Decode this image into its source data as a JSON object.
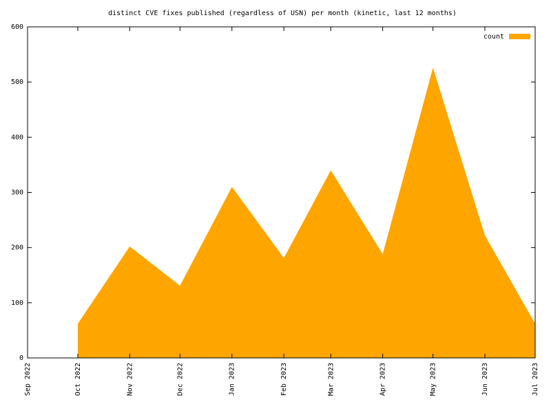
{
  "chart_data": {
    "type": "area",
    "title": "distinct CVE fixes published (regardless of USN) per month (kinetic, last 12 months)",
    "x": [
      "2022-10",
      "2022-11",
      "2022-12",
      "2023-01",
      "2023-02",
      "2023-03",
      "2023-04",
      "2023-05",
      "2023-06",
      "2023-07"
    ],
    "series": [
      {
        "name": "count",
        "color": "#ffa500",
        "values": [
          62,
          202,
          131,
          310,
          181,
          340,
          188,
          526,
          222,
          62
        ]
      }
    ],
    "xlim": [
      "2022-09",
      "2023-07"
    ],
    "xticks": [
      {
        "value": "2022-09",
        "label": "Sep 2022"
      },
      {
        "value": "2022-10",
        "label": "Oct 2022"
      },
      {
        "value": "2022-11",
        "label": "Nov 2022"
      },
      {
        "value": "2022-12",
        "label": "Dec 2022"
      },
      {
        "value": "2023-01",
        "label": "Jan 2023"
      },
      {
        "value": "2023-02",
        "label": "Feb 2023"
      },
      {
        "value": "2023-03",
        "label": "Mar 2023"
      },
      {
        "value": "2023-04",
        "label": "Apr 2023"
      },
      {
        "value": "2023-05",
        "label": "May 2023"
      },
      {
        "value": "2023-06",
        "label": "Jun 2023"
      },
      {
        "value": "2023-07",
        "label": "Jul 2023"
      }
    ],
    "ylim": [
      0,
      600
    ],
    "yticks": [
      0,
      100,
      200,
      300,
      400,
      500,
      600
    ],
    "legend": "top-right"
  }
}
